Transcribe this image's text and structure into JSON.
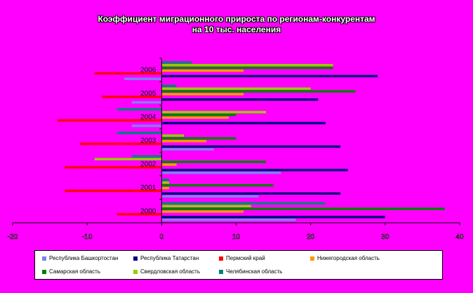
{
  "chart_data": {
    "type": "bar",
    "orientation": "horizontal",
    "title_lines": [
      "Коэффициент миграционного прироста по регионам-конкурентам",
      "на 10 тыс. населения"
    ],
    "categories": [
      "2006",
      "2005",
      "2004",
      "2003",
      "2002",
      "2001",
      "2000"
    ],
    "xticks": [
      "-20",
      "-10",
      "0",
      "10",
      "20",
      "30",
      "40"
    ],
    "xlim": [
      -20,
      40
    ],
    "grid": false,
    "legend_position": "bottom",
    "series": [
      {
        "name": "Республика Башкортостан",
        "color": "#8080ff",
        "values": [
          -5,
          -4,
          -4,
          7,
          16,
          13,
          18
        ]
      },
      {
        "name": "Республика Татарстан",
        "color": "#000080",
        "values": [
          29,
          21,
          22,
          24,
          25,
          24,
          30
        ]
      },
      {
        "name": "Пермский край",
        "color": "#ff0000",
        "values": [
          -9,
          -8,
          -14,
          -11,
          -13,
          -13,
          -6
        ]
      },
      {
        "name": "Нижегородская область",
        "color": "#ff9900",
        "values": [
          11,
          11,
          9,
          6,
          2,
          1,
          11
        ]
      },
      {
        "name": "Самарская область",
        "color": "#008000",
        "values": [
          23,
          26,
          10,
          10,
          14,
          15,
          38
        ]
      },
      {
        "name": "Свердловская область",
        "color": "#99cc00",
        "values": [
          23,
          20,
          14,
          3,
          -9,
          1,
          12
        ]
      },
      {
        "name": "Челябинская область",
        "color": "#008080",
        "values": [
          4,
          2,
          -6,
          -6,
          -4,
          1,
          22
        ]
      }
    ]
  }
}
